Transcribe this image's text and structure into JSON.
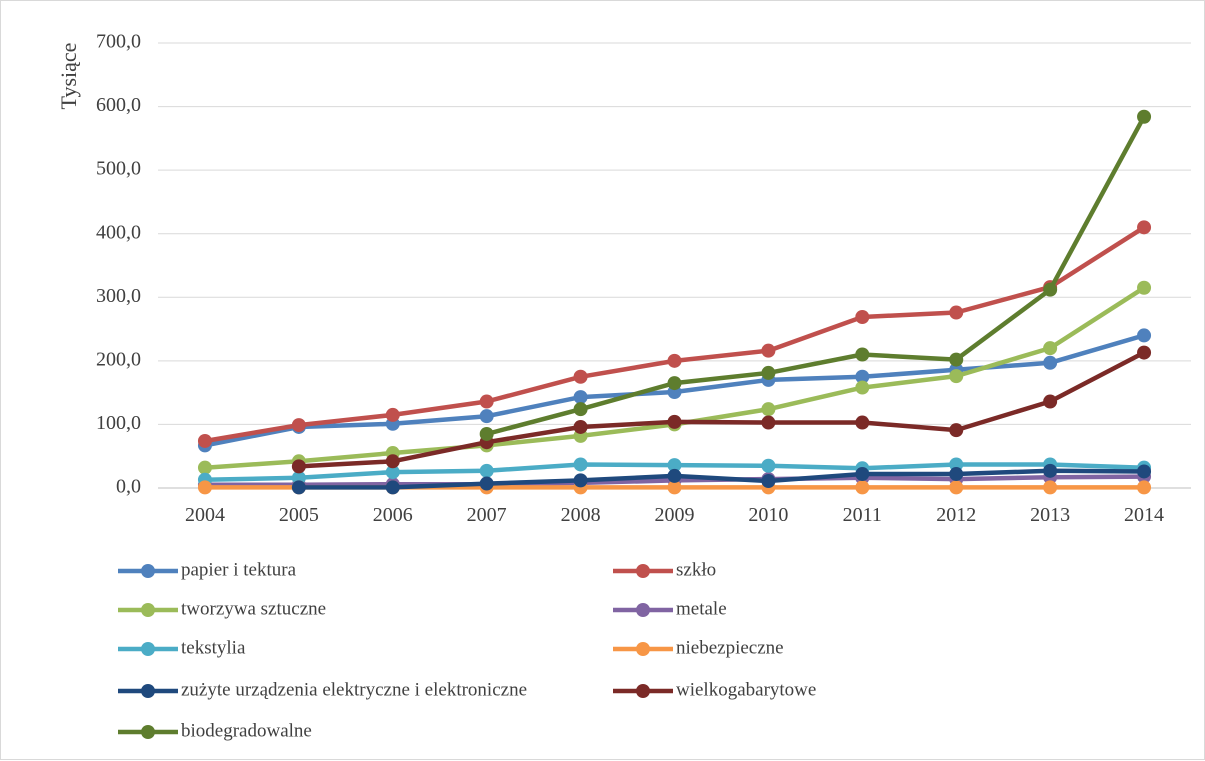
{
  "chart_data": {
    "type": "line",
    "title": "",
    "xlabel": "",
    "ylabel": "Tysiące",
    "ylim": [
      0,
      700
    ],
    "y_ticks": [
      "0,0",
      "100,0",
      "200,0",
      "300,0",
      "400,0",
      "500,0",
      "600,0",
      "700,0"
    ],
    "categories": [
      "2004",
      "2005",
      "2006",
      "2007",
      "2008",
      "2009",
      "2010",
      "2011",
      "2012",
      "2013",
      "2014"
    ],
    "grid": "horizontal",
    "legend_position": "bottom",
    "series": [
      {
        "name": "papier i tektura",
        "color": "#4f81bd",
        "values": [
          67,
          96,
          101,
          113,
          143,
          151,
          170,
          175,
          186,
          197,
          240
        ]
      },
      {
        "name": "szkło",
        "color": "#c0504d",
        "values": [
          74,
          99,
          115,
          136,
          175,
          200,
          216,
          269,
          276,
          316,
          410
        ]
      },
      {
        "name": "tworzywa sztuczne",
        "color": "#9bbb59",
        "values": [
          32,
          42,
          55,
          67,
          82,
          100,
          124,
          158,
          176,
          220,
          315
        ]
      },
      {
        "name": "metale",
        "color": "#8064a2",
        "values": [
          5,
          5,
          6,
          6,
          8,
          12,
          14,
          16,
          14,
          17,
          18
        ]
      },
      {
        "name": "tekstylia",
        "color": "#4bacc6",
        "values": [
          13,
          16,
          25,
          27,
          37,
          36,
          35,
          31,
          37,
          37,
          32
        ]
      },
      {
        "name": "niebezpieczne",
        "color": "#f79646",
        "values": [
          1,
          1,
          1,
          1,
          1,
          1,
          1,
          1,
          1,
          1,
          1
        ]
      },
      {
        "name": "zużyte urządzenia elektryczne i elektroniczne",
        "color": "#1f497d",
        "values": [
          null,
          1,
          1,
          7,
          12,
          19,
          11,
          22,
          22,
          27,
          26
        ]
      },
      {
        "name": "wielkogabarytowe",
        "color": "#7b2a27",
        "values": [
          null,
          34,
          42,
          72,
          96,
          104,
          103,
          103,
          91,
          136,
          213
        ]
      },
      {
        "name": "biodegradowalne",
        "color": "#5e7d2e",
        "values": [
          null,
          null,
          null,
          85,
          124,
          165,
          181,
          210,
          202,
          312,
          584
        ]
      }
    ]
  }
}
